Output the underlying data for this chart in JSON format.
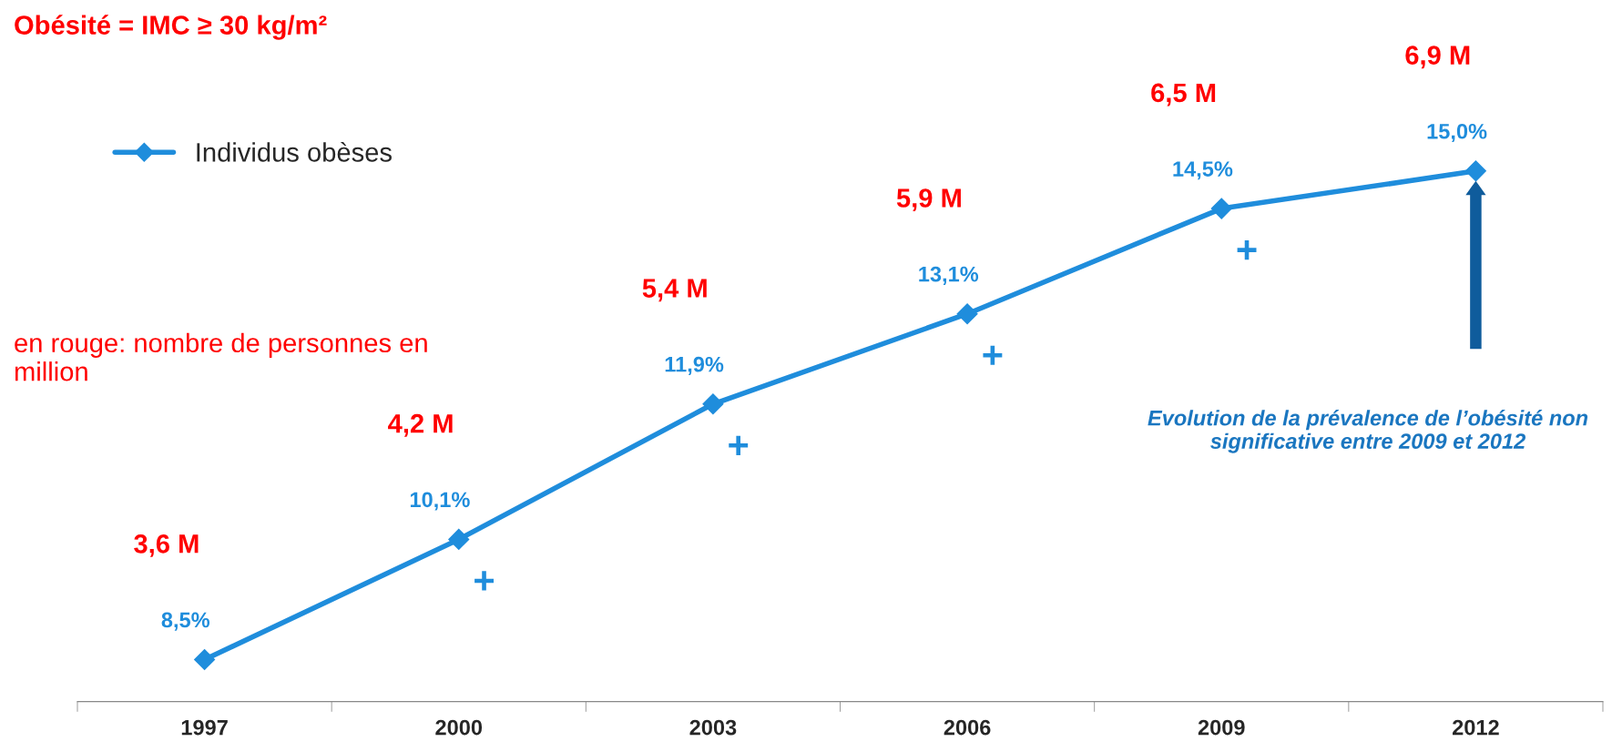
{
  "chart_data": {
    "type": "line",
    "title": "Obésité = IMC ≥ 30 kg/m²",
    "categories": [
      "1997",
      "2000",
      "2003",
      "2006",
      "2009",
      "2012"
    ],
    "series": [
      {
        "name": "Individus obèses",
        "color": "#1f8ddc",
        "values": [
          8.5,
          10.1,
          11.9,
          13.1,
          14.5,
          15.0
        ],
        "value_labels": [
          "8,5%",
          "10,1%",
          "11,9%",
          "13,1%",
          "14,5%",
          "15,0%"
        ]
      }
    ],
    "marker": "diamond",
    "line_style": "solid",
    "legend": "top left",
    "grid": false,
    "tick_labels": "x",
    "annotations": [
      "3,6 M",
      "4,2 M",
      "5,4 M",
      "5,9 M",
      "6,5 M",
      "6,9 M",
      "+",
      "+",
      "+",
      "+",
      "en rouge: nombre de personnes en million",
      "Evolution de la prévalence de l’obésité non significative entre 2009 et 2012"
    ]
  }
}
